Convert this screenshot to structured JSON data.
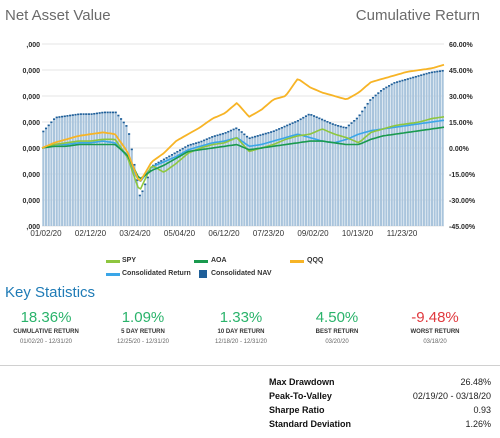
{
  "header": {
    "left_title": "Net Asset Value",
    "right_title": "Cumulative Return"
  },
  "chart_data": {
    "type": "bar",
    "left_axis": {
      "ticks": [
        ",000",
        "0,000",
        "0,000",
        "0,000",
        "0,000",
        "0,000",
        "0,000",
        ",000"
      ]
    },
    "right_axis": {
      "ticks": [
        "60.00%",
        "45.00%",
        "30.00%",
        "15.00%",
        "0.00%",
        "-15.00%",
        "-30.00%",
        "-45.00%"
      ],
      "range": [
        -45,
        60
      ]
    },
    "x_ticks": [
      "01/02/20",
      "02/12/20",
      "03/24/20",
      "05/04/20",
      "06/12/20",
      "07/23/20",
      "09/02/20",
      "10/13/20",
      "11/23/20"
    ],
    "series": [
      {
        "name": "SPY",
        "color": "#8ec63f",
        "values": [
          0,
          2,
          3,
          4,
          4,
          5,
          5,
          -5,
          -25,
          -10,
          -14,
          -9,
          -3,
          0,
          2,
          3,
          6,
          -2,
          0,
          2,
          5,
          7,
          8,
          11,
          8,
          6,
          3,
          9,
          11,
          13,
          14,
          15,
          17,
          18
        ]
      },
      {
        "name": "AOA",
        "color": "#1a9a4e",
        "values": [
          0,
          1,
          1,
          2,
          2,
          2,
          2,
          -4,
          -18,
          -13,
          -10,
          -6,
          -2,
          -1,
          0,
          1,
          2,
          -1,
          0,
          1,
          2,
          3,
          4,
          4,
          3,
          2,
          2,
          5,
          7,
          8,
          9,
          10,
          11,
          12
        ]
      },
      {
        "name": "QQQ",
        "color": "#f7b426",
        "values": [
          0,
          3,
          5,
          7,
          8,
          9,
          8,
          -2,
          -20,
          -8,
          -3,
          4,
          8,
          12,
          17,
          20,
          26,
          18,
          22,
          28,
          30,
          40,
          35,
          32,
          30,
          28,
          32,
          38,
          40,
          42,
          44,
          45,
          46,
          48
        ]
      },
      {
        "name": "Consolidated Return",
        "color": "#3aa6e8",
        "values": [
          0,
          2,
          2,
          3,
          3,
          4,
          3,
          -5,
          -20,
          -11,
          -8,
          -5,
          -1,
          1,
          3,
          4,
          6,
          1,
          2,
          4,
          6,
          8,
          6,
          4,
          3,
          5,
          8,
          10,
          11,
          12,
          13,
          14,
          15,
          16
        ]
      },
      {
        "name": "Consolidated NAV",
        "color": "#1f5f99",
        "values": [
          10,
          18,
          19,
          20,
          20,
          21,
          21,
          12,
          -28,
          -10,
          -6,
          -2,
          2,
          4,
          7,
          9,
          12,
          6,
          8,
          10,
          13,
          16,
          20,
          17,
          14,
          12,
          18,
          28,
          34,
          38,
          40,
          42,
          44,
          45
        ]
      }
    ]
  },
  "key_stats": {
    "title": "Key Statistics",
    "items": [
      {
        "value": "18.36%",
        "label": "CUMULATIVE RETURN",
        "dates": "01/02/20 - 12/31/20"
      },
      {
        "value": "1.09%",
        "label": "5 DAY RETURN",
        "dates": "12/25/20 - 12/31/20"
      },
      {
        "value": "1.33%",
        "label": "10 DAY RETURN",
        "dates": "12/18/20 - 12/31/20"
      },
      {
        "value": "4.50%",
        "label": "BEST RETURN",
        "dates": "03/20/20"
      },
      {
        "value": "-9.48%",
        "label": "WORST RETURN",
        "dates": "03/18/20"
      }
    ]
  },
  "summary": [
    {
      "label": "Max Drawdown",
      "value": "26.48%"
    },
    {
      "label": "Peak-To-Valley",
      "value": "02/19/20 - 03/18/20"
    },
    {
      "label": "Sharpe Ratio",
      "value": "0.93"
    },
    {
      "label": "Standard Deviation",
      "value": "1.26%"
    }
  ]
}
